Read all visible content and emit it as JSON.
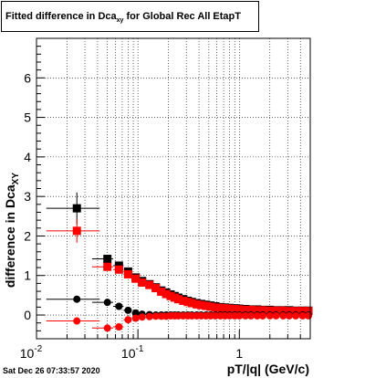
{
  "title": {
    "main": "Fitted difference in Dca",
    "sub": "xy",
    "rest": " for Global Rec All EtapT"
  },
  "timestamp": "Sat Dec 26 07:33:57 2020",
  "chart_data": {
    "type": "scatter",
    "title": "Fitted difference in Dca_xy for Global Rec All EtapT",
    "xlabel": "pT/|q| (GeV/c)",
    "ylabel": "difference in Dca_XY",
    "ylabel_main": "difference in Dca",
    "ylabel_sub": "XY",
    "x_scale": "log",
    "xlim": [
      0.01,
      5
    ],
    "ylim": [
      -0.6,
      7.0
    ],
    "grid": true,
    "x_ticks": [
      {
        "value": 0.01,
        "label": "10",
        "sup": "-2"
      },
      {
        "value": 0.1,
        "label": "10",
        "sup": "-1"
      },
      {
        "value": 1,
        "label": "1",
        "sup": ""
      }
    ],
    "y_ticks": [
      0,
      1,
      2,
      3,
      4,
      5,
      6
    ],
    "series": [
      {
        "color": "#000000",
        "marker": "square",
        "x": [
          0.025,
          0.05,
          0.065,
          0.08,
          0.095,
          0.11,
          0.13,
          0.15,
          0.17,
          0.19,
          0.21,
          0.23,
          0.25,
          0.28,
          0.31,
          0.34,
          0.38,
          0.42,
          0.47,
          0.52,
          0.58,
          0.65,
          0.72,
          0.8,
          0.9,
          1.0,
          1.15,
          1.3,
          1.5,
          1.7,
          2.0,
          2.3,
          2.7,
          3.1,
          3.6,
          4.2,
          4.8
        ],
        "y": [
          2.7,
          1.42,
          1.25,
          1.1,
          0.95,
          0.86,
          0.78,
          0.7,
          0.62,
          0.57,
          0.52,
          0.48,
          0.44,
          0.4,
          0.36,
          0.33,
          0.3,
          0.28,
          0.26,
          0.24,
          0.22,
          0.2,
          0.19,
          0.18,
          0.17,
          0.16,
          0.15,
          0.14,
          0.14,
          0.13,
          0.13,
          0.12,
          0.12,
          0.12,
          0.11,
          0.11,
          0.11
        ],
        "yerr": [
          0.4,
          0.06,
          0.05,
          0.04,
          0.03,
          0.03,
          0.02,
          0.02,
          0.02,
          0.02,
          0.02,
          0.02,
          0.02,
          0.02,
          0.02,
          0.02,
          0.02,
          0.02,
          0.02,
          0.02,
          0.02,
          0.02,
          0.02,
          0.02,
          0.02,
          0.02,
          0.02,
          0.02,
          0.02,
          0.02,
          0.02,
          0.02,
          0.02,
          0.02,
          0.02,
          0.02,
          0.02
        ]
      },
      {
        "color": "#ff0000",
        "marker": "square",
        "x": [
          0.025,
          0.05,
          0.065,
          0.08,
          0.095,
          0.11,
          0.13,
          0.15,
          0.17,
          0.19,
          0.21,
          0.23,
          0.25,
          0.28,
          0.31,
          0.34,
          0.38,
          0.42,
          0.47,
          0.52,
          0.58,
          0.65,
          0.72,
          0.8,
          0.9,
          1.0,
          1.15,
          1.3,
          1.5,
          1.7,
          2.0,
          2.3,
          2.7,
          3.1,
          3.6,
          4.2,
          4.8
        ],
        "y": [
          2.13,
          1.22,
          1.15,
          1.03,
          0.92,
          0.82,
          0.76,
          0.68,
          0.59,
          0.53,
          0.48,
          0.44,
          0.4,
          0.36,
          0.33,
          0.3,
          0.27,
          0.25,
          0.23,
          0.21,
          0.19,
          0.18,
          0.17,
          0.16,
          0.15,
          0.14,
          0.13,
          0.13,
          0.12,
          0.12,
          0.11,
          0.11,
          0.11,
          0.1,
          0.1,
          0.1,
          0.1
        ],
        "yerr": [
          0.3,
          0.06,
          0.05,
          0.04,
          0.03,
          0.03,
          0.02,
          0.02,
          0.02,
          0.02,
          0.02,
          0.02,
          0.02,
          0.02,
          0.02,
          0.02,
          0.02,
          0.02,
          0.02,
          0.02,
          0.02,
          0.02,
          0.02,
          0.02,
          0.02,
          0.02,
          0.02,
          0.02,
          0.02,
          0.02,
          0.02,
          0.02,
          0.02,
          0.02,
          0.02,
          0.02,
          0.02
        ]
      },
      {
        "color": "#000000",
        "marker": "circle",
        "x": [
          0.025,
          0.05,
          0.065,
          0.08,
          0.095,
          0.11,
          0.13,
          0.15,
          0.17,
          0.19,
          0.21,
          0.23,
          0.25,
          0.28,
          0.31,
          0.34,
          0.38,
          0.42,
          0.47,
          0.52,
          0.58,
          0.65,
          0.72,
          0.8,
          0.9,
          1.0,
          1.15,
          1.3,
          1.5,
          1.7,
          2.0,
          2.3,
          2.7,
          3.1,
          3.6,
          4.2,
          4.8
        ],
        "y": [
          0.4,
          0.32,
          0.22,
          0.12,
          0.05,
          0.02,
          0.01,
          0.0,
          0.0,
          0.0,
          0.0,
          0.0,
          0.0,
          0.0,
          0.0,
          0.0,
          0.0,
          0.0,
          0.0,
          0.0,
          0.0,
          0.0,
          0.0,
          0.0,
          0.0,
          0.0,
          0.0,
          0.0,
          0.0,
          0.0,
          0.0,
          0.0,
          0.0,
          0.0,
          0.0,
          0.0,
          0.0
        ],
        "yerr": [
          0.05,
          0.03,
          0.02,
          0.02,
          0.02,
          0.01,
          0.01,
          0.01,
          0.01,
          0.01,
          0.01,
          0.01,
          0.01,
          0.01,
          0.01,
          0.01,
          0.01,
          0.01,
          0.01,
          0.01,
          0.01,
          0.01,
          0.01,
          0.01,
          0.01,
          0.01,
          0.01,
          0.01,
          0.01,
          0.01,
          0.01,
          0.01,
          0.01,
          0.01,
          0.01,
          0.01,
          0.01
        ]
      },
      {
        "color": "#ff0000",
        "marker": "circle",
        "x": [
          0.025,
          0.05,
          0.065,
          0.08,
          0.095,
          0.11,
          0.13,
          0.15,
          0.17,
          0.19,
          0.21,
          0.23,
          0.25,
          0.28,
          0.31,
          0.34,
          0.38,
          0.42,
          0.47,
          0.52,
          0.58,
          0.65,
          0.72,
          0.8,
          0.9,
          1.0,
          1.15,
          1.3,
          1.5,
          1.7,
          2.0,
          2.3,
          2.7,
          3.1,
          3.6,
          4.2,
          4.8
        ],
        "y": [
          -0.15,
          -0.33,
          -0.3,
          -0.12,
          -0.08,
          -0.05,
          -0.04,
          -0.03,
          -0.03,
          -0.03,
          -0.02,
          -0.02,
          -0.02,
          -0.02,
          -0.02,
          -0.02,
          -0.02,
          -0.02,
          -0.02,
          -0.02,
          -0.02,
          -0.02,
          -0.02,
          -0.02,
          -0.02,
          -0.02,
          -0.02,
          -0.02,
          -0.02,
          -0.02,
          -0.02,
          -0.02,
          -0.02,
          -0.02,
          -0.02,
          -0.02,
          -0.02
        ],
        "yerr": [
          0.08,
          0.04,
          0.03,
          0.02,
          0.02,
          0.01,
          0.01,
          0.01,
          0.01,
          0.01,
          0.01,
          0.01,
          0.01,
          0.01,
          0.01,
          0.01,
          0.01,
          0.01,
          0.01,
          0.01,
          0.01,
          0.01,
          0.01,
          0.01,
          0.01,
          0.01,
          0.01,
          0.01,
          0.01,
          0.01,
          0.01,
          0.01,
          0.01,
          0.01,
          0.01,
          0.01,
          0.01
        ]
      }
    ]
  }
}
